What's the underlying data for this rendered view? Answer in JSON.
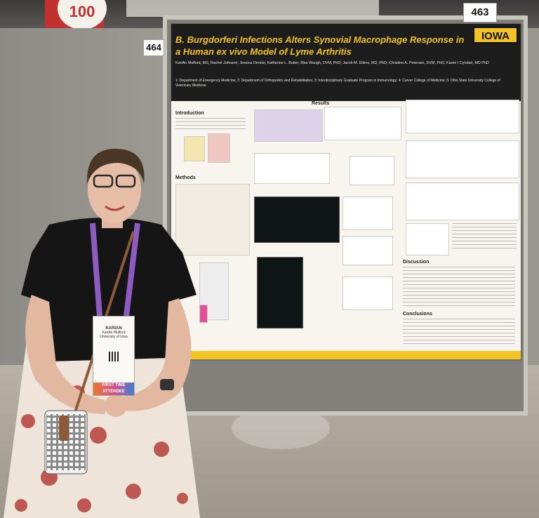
{
  "booth_numbers": {
    "left": "464",
    "right": "463"
  },
  "banner_number": "100",
  "poster": {
    "university": "IOWA",
    "title": "B. Burgdorferi Infections Alters Synovial Macrophage Response in a Human ex vivo Model of Lyme Arthritis",
    "authors": "KariAn Mulford, MS; Rachel Johnson; Jessica Dennis; Katherine L. Butler; Max Waugh, DVM, PhD; Jacob M. Elkins, MD, PhD; Christine A. Petersen, DVM, PhD; Karen I Cyndari, MD PhD",
    "affiliations": "1: Department of Emergency Medicine; 2: Department of Orthopedics and Rehabilitation; 3: Interdisciplinary Graduate Program in Immunology; 4: Carver College of Medicine; 5: Ohio State University College of Veterinary Medicine",
    "sections": {
      "intro": "Introduction",
      "methods": "Methods",
      "results": "Results",
      "discussion": "Discussion",
      "conclusions": "Conclusions"
    }
  },
  "badge": {
    "name": "KARIAN",
    "full_name": "KariAn Mulford",
    "institution": "University of Iowa",
    "ribbon": "FIRST TIME ATTENDEE"
  },
  "colors": {
    "poster_black": "#1d1d1d",
    "iowa_gold": "#f3c326",
    "shirt": "#151515",
    "lanyard": "#8e5cc0"
  }
}
